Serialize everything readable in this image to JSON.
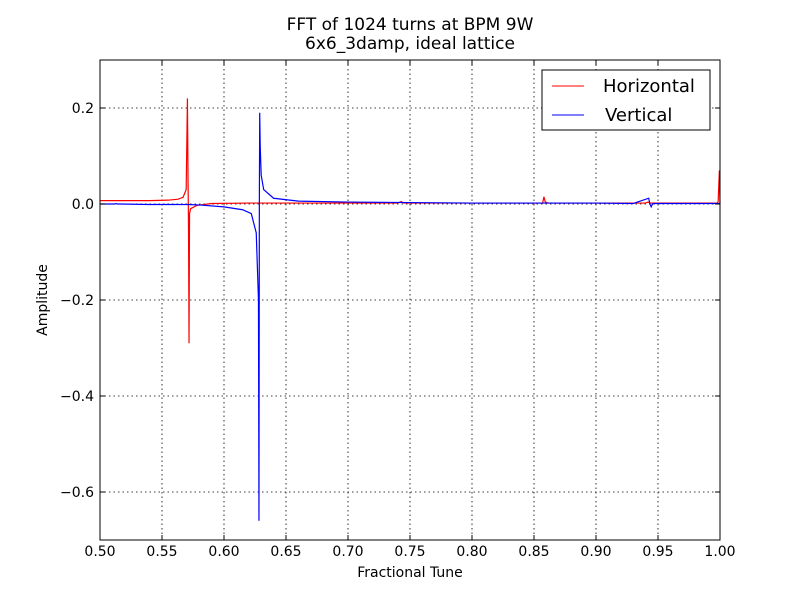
{
  "chart_data": {
    "type": "line",
    "title": "FFT of 1024 turns at BPM 9W",
    "subtitle": "6x6_3damp, ideal lattice",
    "xlabel": "Fractional Tune",
    "ylabel": "Amplitude",
    "xlim": [
      0.5,
      1.0
    ],
    "ylim": [
      -0.7,
      0.3
    ],
    "xticks": [
      0.5,
      0.55,
      0.6,
      0.65,
      0.7,
      0.75,
      0.8,
      0.85,
      0.9,
      0.95,
      1.0
    ],
    "xtick_labels": [
      "0.50",
      "0.55",
      "0.60",
      "0.65",
      "0.70",
      "0.75",
      "0.80",
      "0.85",
      "0.90",
      "0.95",
      "1.00"
    ],
    "yticks": [
      -0.6,
      -0.4,
      -0.2,
      0.0,
      0.2
    ],
    "ytick_labels": [
      "−0.6",
      "−0.4",
      "−0.2",
      "0.0",
      "0.2"
    ],
    "grid": true,
    "legend_position": "top-right",
    "series": [
      {
        "name": "Horizontal",
        "color": "#ff0000",
        "x": [
          0.5,
          0.52,
          0.54,
          0.555,
          0.563,
          0.567,
          0.5695,
          0.5705,
          0.571,
          0.5712,
          0.5714,
          0.5718,
          0.5722,
          0.573,
          0.578,
          0.59,
          0.62,
          0.7,
          0.74,
          0.743,
          0.744,
          0.745,
          0.748,
          0.8,
          0.857,
          0.858,
          0.859,
          0.86,
          0.862,
          0.9,
          0.94,
          0.942,
          0.944,
          0.97,
          0.998,
          0.9985,
          0.9995,
          1.0
        ],
        "y": [
          0.007,
          0.007,
          0.007,
          0.008,
          0.01,
          0.014,
          0.03,
          0.22,
          0.05,
          0.0,
          -0.06,
          -0.29,
          -0.02,
          -0.01,
          -0.003,
          0.001,
          0.002,
          0.002,
          0.002,
          0.005,
          0.003,
          0.002,
          0.002,
          0.002,
          0.002,
          0.015,
          0.005,
          0.003,
          0.002,
          0.002,
          0.002,
          0.004,
          0.002,
          0.002,
          0.002,
          0.005,
          0.07,
          0.0
        ]
      },
      {
        "name": "Vertical",
        "color": "#0000ff",
        "x": [
          0.5,
          0.512,
          0.513,
          0.514,
          0.54,
          0.57,
          0.58,
          0.6,
          0.615,
          0.622,
          0.626,
          0.6278,
          0.6282,
          0.6285,
          0.6288,
          0.6292,
          0.63,
          0.632,
          0.64,
          0.66,
          0.7,
          0.75,
          0.8,
          0.86,
          0.9,
          0.93,
          0.9425,
          0.9435,
          0.9445,
          0.9455,
          0.947,
          0.97,
          1.0
        ],
        "y": [
          0.0,
          0.0,
          0.001,
          0.0,
          -0.001,
          -0.001,
          -0.002,
          -0.006,
          -0.012,
          -0.02,
          -0.06,
          -0.2,
          -0.66,
          0.0,
          0.19,
          0.12,
          0.06,
          0.03,
          0.012,
          0.006,
          0.004,
          0.003,
          0.002,
          0.002,
          0.002,
          0.001,
          0.012,
          0.0,
          -0.006,
          0.0,
          0.001,
          0.001,
          0.001
        ]
      }
    ]
  }
}
